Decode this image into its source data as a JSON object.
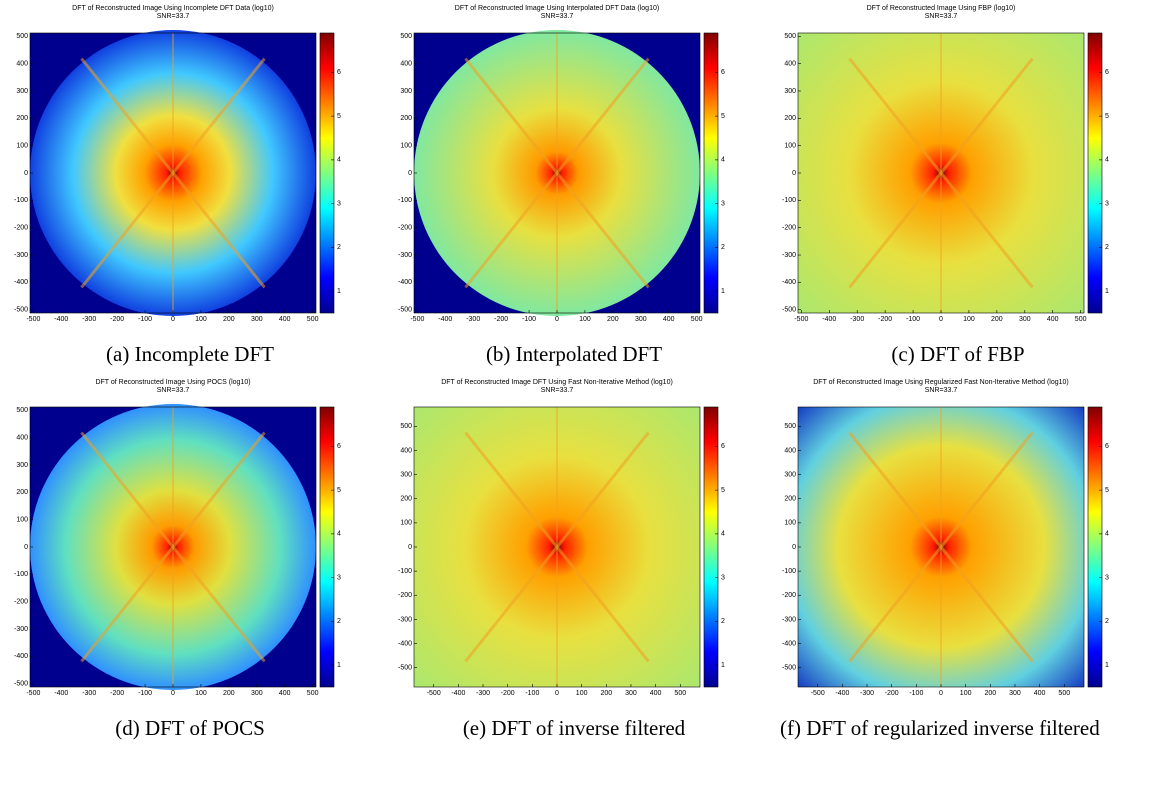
{
  "chart_data": [
    {
      "type": "heatmap",
      "title": "DFT of Reconstructed Image Using Incomplete DFT Data (log10)",
      "subtitle": "SNR=33.7",
      "caption": "(a) Incomplete DFT",
      "xlim": [
        -512,
        512
      ],
      "ylim": [
        -512,
        512
      ],
      "xticks": [
        -500,
        -400,
        -300,
        -200,
        -100,
        0,
        100,
        200,
        300,
        400,
        500
      ],
      "yticks": [
        -500,
        -400,
        -300,
        -200,
        -100,
        0,
        100,
        200,
        300,
        400,
        500
      ],
      "colorbar": {
        "lim": [
          0.5,
          6.9
        ],
        "ticks": [
          1,
          2,
          3,
          4,
          5,
          6
        ]
      }
    },
    {
      "type": "heatmap",
      "title": "DFT of Reconstructed Image Using Interpolated DFT Data (log10)",
      "subtitle": "SNR=33.7",
      "caption": "(b) Interpolated DFT",
      "xlim": [
        -512,
        512
      ],
      "ylim": [
        -512,
        512
      ],
      "xticks": [
        -500,
        -400,
        -300,
        -200,
        -100,
        0,
        100,
        200,
        300,
        400,
        500
      ],
      "yticks": [
        -500,
        -400,
        -300,
        -200,
        -100,
        0,
        100,
        200,
        300,
        400,
        500
      ],
      "colorbar": {
        "lim": [
          0.5,
          6.9
        ],
        "ticks": [
          1,
          2,
          3,
          4,
          5,
          6
        ]
      }
    },
    {
      "type": "heatmap",
      "title": "DFT of Reconstructed Image Using FBP (log10)",
      "subtitle": "SNR=33.7",
      "caption": "(c) DFT of FBP",
      "xlim": [
        -512,
        512
      ],
      "ylim": [
        -512,
        512
      ],
      "xticks": [
        -500,
        -400,
        -300,
        -200,
        -100,
        0,
        100,
        200,
        300,
        400,
        500
      ],
      "yticks": [
        -500,
        -400,
        -300,
        -200,
        -100,
        0,
        100,
        200,
        300,
        400,
        500
      ],
      "colorbar": {
        "lim": [
          0.5,
          6.9
        ],
        "ticks": [
          1,
          2,
          3,
          4,
          5,
          6
        ]
      }
    },
    {
      "type": "heatmap",
      "title": "DFT of Reconstructed Image Using POCS (log10)",
      "subtitle": "SNR=33.7",
      "caption": "(d) DFT of POCS",
      "xlim": [
        -512,
        512
      ],
      "ylim": [
        -512,
        512
      ],
      "xticks": [
        -500,
        -400,
        -300,
        -200,
        -100,
        0,
        100,
        200,
        300,
        400,
        500
      ],
      "yticks": [
        -500,
        -400,
        -300,
        -200,
        -100,
        0,
        100,
        200,
        300,
        400,
        500
      ],
      "colorbar": {
        "lim": [
          0.5,
          6.9
        ],
        "ticks": [
          1,
          2,
          3,
          4,
          5,
          6
        ]
      }
    },
    {
      "type": "heatmap",
      "title": "DFT of Reconstructed Image DFT Using Fast Non-Iterative Method (log10)",
      "subtitle": "SNR=33.7",
      "caption": "(e) DFT of inverse filtered",
      "xlim": [
        -580,
        580
      ],
      "ylim": [
        -580,
        580
      ],
      "xticks": [
        -500,
        -400,
        -300,
        -200,
        -100,
        0,
        100,
        200,
        300,
        400,
        500
      ],
      "yticks": [
        -500,
        -400,
        -300,
        -200,
        -100,
        0,
        100,
        200,
        300,
        400,
        500
      ],
      "colorbar": {
        "lim": [
          0.5,
          6.9
        ],
        "ticks": [
          1,
          2,
          3,
          4,
          5,
          6
        ]
      }
    },
    {
      "type": "heatmap",
      "title": "DFT of Reconstructed Image Using Regularized Fast Non-Iterative Method (log10)",
      "subtitle": "SNR=33.7",
      "caption": "(f) DFT of regularized inverse filtered",
      "xlim": [
        -580,
        580
      ],
      "ylim": [
        -580,
        580
      ],
      "xticks": [
        -500,
        -400,
        -300,
        -200,
        -100,
        0,
        100,
        200,
        300,
        400,
        500
      ],
      "yticks": [
        -500,
        -400,
        -300,
        -200,
        -100,
        0,
        100,
        200,
        300,
        400,
        500
      ],
      "colorbar": {
        "lim": [
          0.5,
          6.9
        ],
        "ticks": [
          1,
          2,
          3,
          4,
          5,
          6
        ]
      }
    }
  ]
}
